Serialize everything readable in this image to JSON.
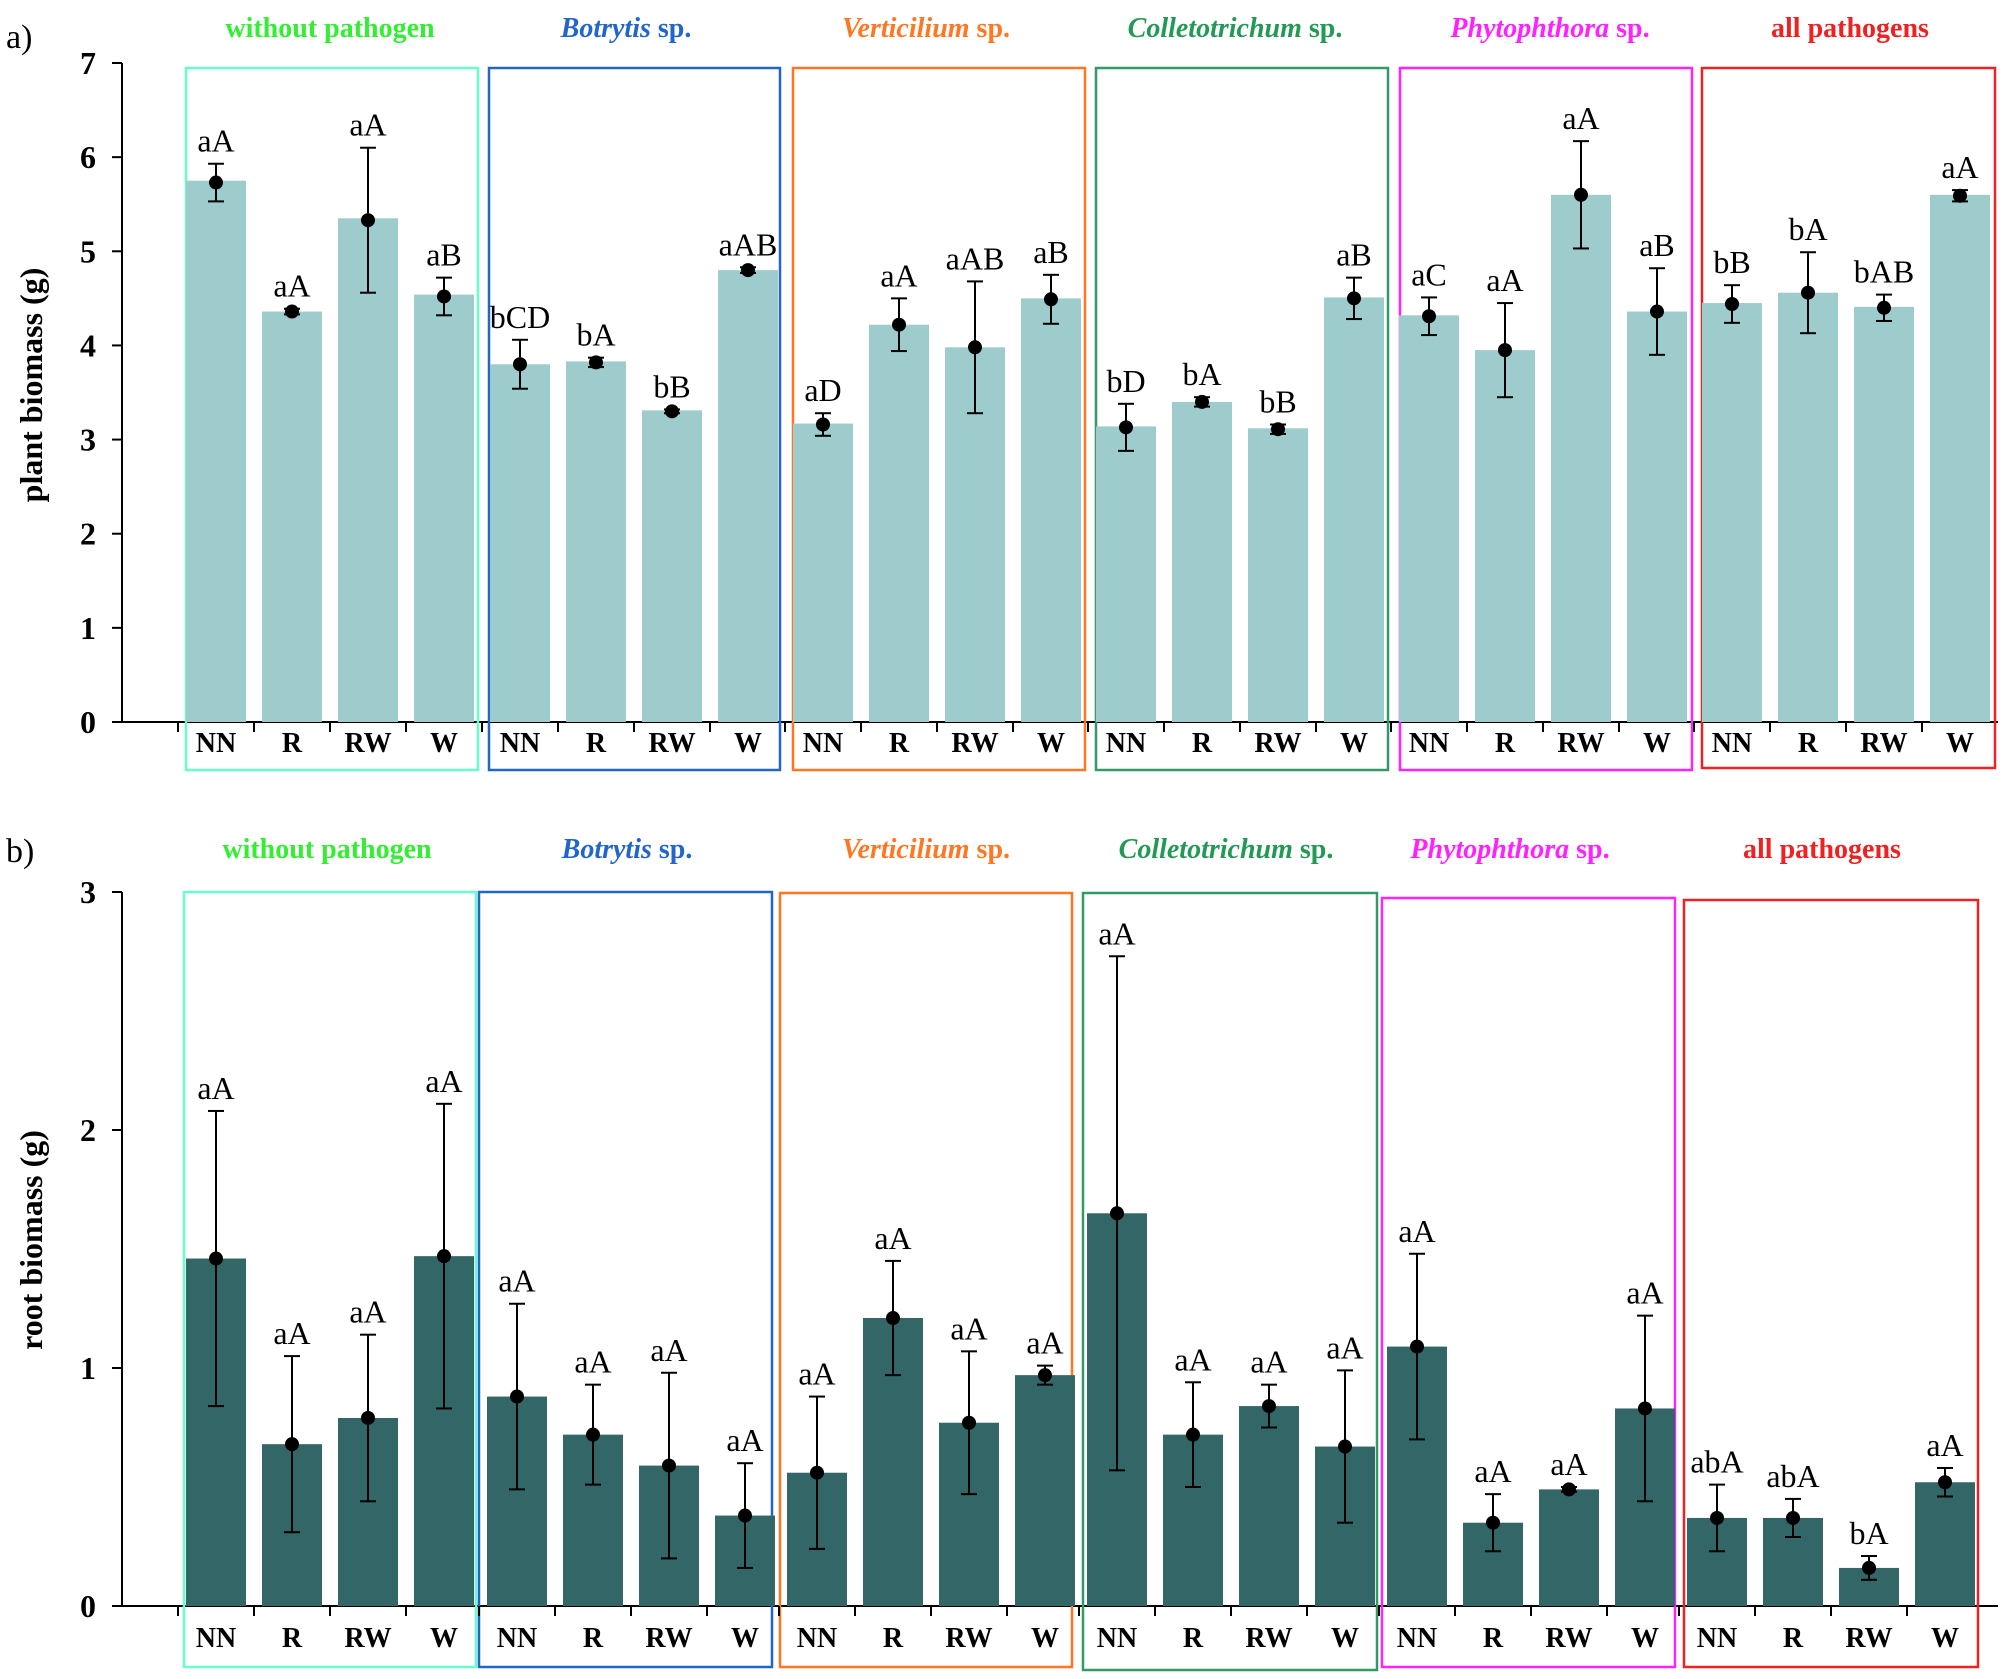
{
  "chart_data": [
    {
      "type": "bar",
      "panel_label": "a)",
      "ylabel": "plant biomass (g)",
      "ylim": [
        0,
        7
      ],
      "yticks": [
        0,
        1,
        2,
        3,
        4,
        5,
        6,
        7
      ],
      "bar_color": "#9ecccc",
      "groups": [
        {
          "title": "without pathogen",
          "title_parts": [
            {
              "text": "without pathogen",
              "italic": false
            }
          ],
          "title_color": "#33ee33",
          "box_color": "#66ffcc",
          "categories": [
            "NN",
            "R",
            "RW",
            "W"
          ],
          "values": [
            5.75,
            4.36,
            5.35,
            4.54
          ],
          "means": [
            5.73,
            4.36,
            5.33,
            4.52
          ],
          "errors": [
            0.2,
            0.03,
            0.77,
            0.2
          ],
          "labels": [
            "aA",
            "aA",
            "aA",
            "aB"
          ]
        },
        {
          "title": "Botrytis sp.",
          "title_parts": [
            {
              "text": "Botrytis",
              "italic": true
            },
            {
              "text": " sp.",
              "italic": false
            }
          ],
          "title_color": "#2266cc",
          "box_color": "#2266cc",
          "categories": [
            "NN",
            "R",
            "RW",
            "W"
          ],
          "values": [
            3.8,
            3.83,
            3.31,
            4.8
          ],
          "means": [
            3.8,
            3.82,
            3.3,
            4.8
          ],
          "errors": [
            0.26,
            0.05,
            0.02,
            0.03
          ],
          "labels": [
            "bCD",
            "bA",
            "bB",
            "aAB"
          ]
        },
        {
          "title": "Verticilium sp.",
          "title_parts": [
            {
              "text": "Verticilium",
              "italic": true
            },
            {
              "text": " sp.",
              "italic": false
            }
          ],
          "title_color": "#ff7722",
          "box_color": "#ff7722",
          "categories": [
            "NN",
            "R",
            "RW",
            "W"
          ],
          "values": [
            3.17,
            4.22,
            3.98,
            4.5
          ],
          "means": [
            3.16,
            4.22,
            3.98,
            4.49
          ],
          "errors": [
            0.12,
            0.28,
            0.7,
            0.26
          ],
          "labels": [
            "aD",
            "aA",
            "aAB",
            "aB"
          ]
        },
        {
          "title": "Colletotrichum sp.",
          "title_parts": [
            {
              "text": "Colletotrichum",
              "italic": true
            },
            {
              "text": " sp.",
              "italic": false
            }
          ],
          "title_color": "#229955",
          "box_color": "#339966",
          "categories": [
            "NN",
            "R",
            "RW",
            "W"
          ],
          "values": [
            3.14,
            3.4,
            3.12,
            4.51
          ],
          "means": [
            3.13,
            3.4,
            3.11,
            4.5
          ],
          "errors": [
            0.25,
            0.05,
            0.05,
            0.22
          ],
          "labels": [
            "bD",
            "bA",
            "bB",
            "aB"
          ]
        },
        {
          "title": "Phytophthora sp.",
          "title_parts": [
            {
              "text": "Phytophthora",
              "italic": true
            },
            {
              "text": " sp.",
              "italic": false
            }
          ],
          "title_color": "#ff22ff",
          "box_color": "#ff22ff",
          "categories": [
            "NN",
            "R",
            "RW",
            "W"
          ],
          "values": [
            4.32,
            3.95,
            5.6,
            4.36
          ],
          "means": [
            4.31,
            3.95,
            5.6,
            4.36
          ],
          "errors": [
            0.2,
            0.5,
            0.57,
            0.46
          ],
          "labels": [
            "aC",
            "aA",
            "aA",
            "aB"
          ]
        },
        {
          "title": "all pathogens",
          "title_parts": [
            {
              "text": "all pathogens",
              "italic": false
            }
          ],
          "title_color": "#ee2222",
          "box_color": "#ee2222",
          "categories": [
            "NN",
            "R",
            "RW",
            "W"
          ],
          "values": [
            4.45,
            4.56,
            4.41,
            5.6
          ],
          "means": [
            4.44,
            4.56,
            4.4,
            5.59
          ],
          "errors": [
            0.2,
            0.43,
            0.14,
            0.06
          ],
          "labels": [
            "bB",
            "bA",
            "bAB",
            "aA"
          ]
        }
      ]
    },
    {
      "type": "bar",
      "panel_label": "b)",
      "ylabel": "root biomass (g)",
      "ylim": [
        0,
        3
      ],
      "yticks": [
        0,
        1,
        2,
        3
      ],
      "bar_color": "#336666",
      "groups": [
        {
          "title": "without pathogen",
          "title_parts": [
            {
              "text": "without pathogen",
              "italic": false
            }
          ],
          "title_color": "#33ee33",
          "box_color": "#66ffcc",
          "categories": [
            "NN",
            "R",
            "RW",
            "W"
          ],
          "values": [
            1.46,
            0.68,
            0.79,
            1.47
          ],
          "means": [
            1.46,
            0.68,
            0.79,
            1.47
          ],
          "errors": [
            0.62,
            0.37,
            0.35,
            0.64
          ],
          "labels": [
            "aA",
            "aA",
            "aA",
            "aA"
          ]
        },
        {
          "title": "Botrytis sp.",
          "title_parts": [
            {
              "text": "Botrytis",
              "italic": true
            },
            {
              "text": " sp.",
              "italic": false
            }
          ],
          "title_color": "#2266cc",
          "box_color": "#2266cc",
          "categories": [
            "NN",
            "R",
            "RW",
            "W"
          ],
          "values": [
            0.88,
            0.72,
            0.59,
            0.38
          ],
          "means": [
            0.88,
            0.72,
            0.59,
            0.38
          ],
          "errors": [
            0.39,
            0.21,
            0.39,
            0.22
          ],
          "labels": [
            "aA",
            "aA",
            "aA",
            "aA"
          ]
        },
        {
          "title": "Verticilium sp.",
          "title_parts": [
            {
              "text": "Verticilium",
              "italic": true
            },
            {
              "text": " sp.",
              "italic": false
            }
          ],
          "title_color": "#ff7722",
          "box_color": "#ff7722",
          "categories": [
            "NN",
            "R",
            "RW",
            "W"
          ],
          "values": [
            0.56,
            1.21,
            0.77,
            0.97
          ],
          "means": [
            0.56,
            1.21,
            0.77,
            0.97
          ],
          "errors": [
            0.32,
            0.24,
            0.3,
            0.04
          ],
          "labels": [
            "aA",
            "aA",
            "aA",
            "aA"
          ]
        },
        {
          "title": "Colletotrichum sp.",
          "title_parts": [
            {
              "text": "Colletotrichum",
              "italic": true
            },
            {
              "text": " sp.",
              "italic": false
            }
          ],
          "title_color": "#229955",
          "box_color": "#339966",
          "categories": [
            "NN",
            "R",
            "RW",
            "W"
          ],
          "values": [
            1.65,
            0.72,
            0.84,
            0.67
          ],
          "means": [
            1.65,
            0.72,
            0.84,
            0.67
          ],
          "errors": [
            1.08,
            0.22,
            0.09,
            0.32
          ],
          "labels": [
            "aA",
            "aA",
            "aA",
            "aA"
          ]
        },
        {
          "title": "Phytophthora sp.",
          "title_parts": [
            {
              "text": "Phytophthora",
              "italic": true
            },
            {
              "text": " sp.",
              "italic": false
            }
          ],
          "title_color": "#ff22ff",
          "box_color": "#ff22ff",
          "categories": [
            "NN",
            "R",
            "RW",
            "W"
          ],
          "values": [
            1.09,
            0.35,
            0.49,
            0.83
          ],
          "means": [
            1.09,
            0.35,
            0.49,
            0.83
          ],
          "errors": [
            0.39,
            0.12,
            0.01,
            0.39
          ],
          "labels": [
            "aA",
            "aA",
            "aA",
            "aA"
          ]
        },
        {
          "title": "all pathogens",
          "title_parts": [
            {
              "text": "all pathogens",
              "italic": false
            }
          ],
          "title_color": "#ee2222",
          "box_color": "#ee2222",
          "categories": [
            "NN",
            "R",
            "RW",
            "W"
          ],
          "values": [
            0.37,
            0.37,
            0.16,
            0.52
          ],
          "means": [
            0.37,
            0.37,
            0.16,
            0.52
          ],
          "errors": [
            0.14,
            0.08,
            0.05,
            0.06
          ],
          "labels": [
            "abA",
            "abA",
            "bA",
            "aA"
          ]
        }
      ]
    }
  ]
}
